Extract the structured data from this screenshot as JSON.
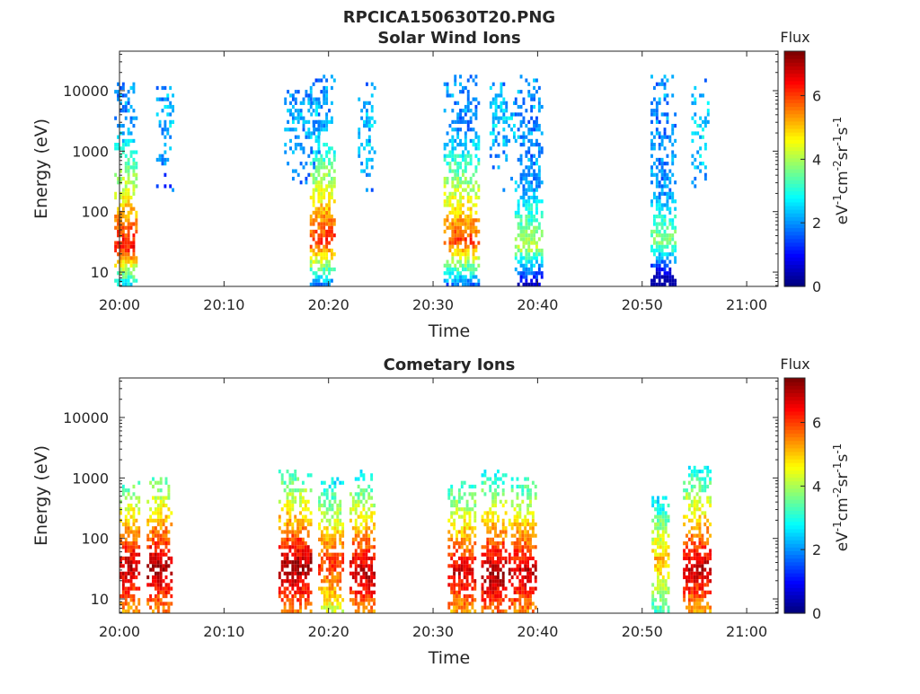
{
  "figure_title": "RPCICA150630T20.PNG",
  "chart_data": [
    {
      "type": "heatmap",
      "title": "Solar Wind Ions",
      "xlabel": "Time",
      "ylabel": "Energy (eV)",
      "x_ticks": [
        "20:00",
        "20:10",
        "20:20",
        "20:30",
        "20:40",
        "20:50",
        "21:00"
      ],
      "xlim_minutes": [
        0,
        63
      ],
      "y_scale": "log",
      "ylim": [
        5.8,
        45000
      ],
      "y_ticks": [
        {
          "value": 10,
          "label": "10"
        },
        {
          "value": 100,
          "label": "100"
        },
        {
          "value": 1000,
          "label": "1000"
        },
        {
          "value": 10000,
          "label": "10000"
        }
      ],
      "colorbar": {
        "title": "Flux",
        "range": [
          0,
          7.4
        ],
        "ticks": [
          "0",
          "2",
          "4",
          "6"
        ],
        "unit": "eV-1cm-2sr-1s-1",
        "colormap": "jet"
      },
      "bursts": [
        {
          "t": 0.6,
          "width": 2.2,
          "peak_energy": 25,
          "peak_flux": 6.4,
          "max_energy": 12000,
          "kind": "sw"
        },
        {
          "t": 4.4,
          "width": 1.8,
          "peak_energy": 3000,
          "peak_flux": 2.3,
          "max_energy": 12000,
          "kind": "sw-high"
        },
        {
          "t": 19.5,
          "width": 2.6,
          "peak_energy": 30,
          "peak_flux": 6.2,
          "max_energy": 18000,
          "kind": "sw"
        },
        {
          "t": 17.5,
          "width": 3.5,
          "peak_energy": 3000,
          "peak_flux": 2.3,
          "max_energy": 9000,
          "kind": "sw-high"
        },
        {
          "t": 23.7,
          "width": 1.8,
          "peak_energy": 2000,
          "peak_flux": 2.4,
          "max_energy": 12000,
          "kind": "sw-high"
        },
        {
          "t": 32.7,
          "width": 3.4,
          "peak_energy": 30,
          "peak_flux": 6.0,
          "max_energy": 16000,
          "kind": "sw"
        },
        {
          "t": 36.6,
          "width": 2.4,
          "peak_energy": 3000,
          "peak_flux": 2.4,
          "max_energy": 12000,
          "kind": "sw-high"
        },
        {
          "t": 39.2,
          "width": 2.8,
          "peak_energy": 25,
          "peak_flux": 4.2,
          "max_energy": 16000,
          "kind": "sw"
        },
        {
          "t": 52.1,
          "width": 2.6,
          "peak_energy": 30,
          "peak_flux": 3.8,
          "max_energy": 16000,
          "kind": "sw"
        },
        {
          "t": 55.6,
          "width": 1.8,
          "peak_energy": 2000,
          "peak_flux": 2.6,
          "max_energy": 16000,
          "kind": "sw-high"
        }
      ]
    },
    {
      "type": "heatmap",
      "title": "Cometary Ions",
      "xlabel": "Time",
      "ylabel": "Energy (eV)",
      "x_ticks": [
        "20:00",
        "20:10",
        "20:20",
        "20:30",
        "20:40",
        "20:50",
        "21:00"
      ],
      "xlim_minutes": [
        0,
        63
      ],
      "y_scale": "log",
      "ylim": [
        5.8,
        45000
      ],
      "y_ticks": [
        {
          "value": 10,
          "label": "10"
        },
        {
          "value": 100,
          "label": "100"
        },
        {
          "value": 1000,
          "label": "1000"
        },
        {
          "value": 10000,
          "label": "10000"
        }
      ],
      "colorbar": {
        "title": "Flux",
        "range": [
          0,
          7.4
        ],
        "ticks": [
          "0",
          "2",
          "4",
          "6"
        ],
        "unit": "eV-1cm-2sr-1s-1",
        "colormap": "jet"
      },
      "bursts": [
        {
          "t": 1.0,
          "width": 2.0,
          "peak_energy": 30,
          "peak_flux": 7.0,
          "max_energy": 800,
          "kind": "com"
        },
        {
          "t": 3.8,
          "width": 2.4,
          "peak_energy": 30,
          "peak_flux": 7.2,
          "max_energy": 900,
          "kind": "com"
        },
        {
          "t": 16.8,
          "width": 3.2,
          "peak_energy": 30,
          "peak_flux": 7.2,
          "max_energy": 1200,
          "kind": "com"
        },
        {
          "t": 20.2,
          "width": 2.4,
          "peak_energy": 35,
          "peak_flux": 6.2,
          "max_energy": 1000,
          "kind": "com"
        },
        {
          "t": 23.3,
          "width": 2.6,
          "peak_energy": 25,
          "peak_flux": 7.0,
          "max_energy": 1300,
          "kind": "com"
        },
        {
          "t": 32.8,
          "width": 2.8,
          "peak_energy": 25,
          "peak_flux": 6.8,
          "max_energy": 800,
          "kind": "com"
        },
        {
          "t": 35.9,
          "width": 2.6,
          "peak_energy": 25,
          "peak_flux": 7.2,
          "max_energy": 1200,
          "kind": "com"
        },
        {
          "t": 38.6,
          "width": 2.8,
          "peak_energy": 25,
          "peak_flux": 7.0,
          "max_energy": 900,
          "kind": "com"
        },
        {
          "t": 51.8,
          "width": 1.8,
          "peak_energy": 40,
          "peak_flux": 5.2,
          "max_energy": 500,
          "kind": "com"
        },
        {
          "t": 55.3,
          "width": 2.8,
          "peak_energy": 30,
          "peak_flux": 7.0,
          "max_energy": 1400,
          "kind": "com"
        }
      ]
    }
  ]
}
